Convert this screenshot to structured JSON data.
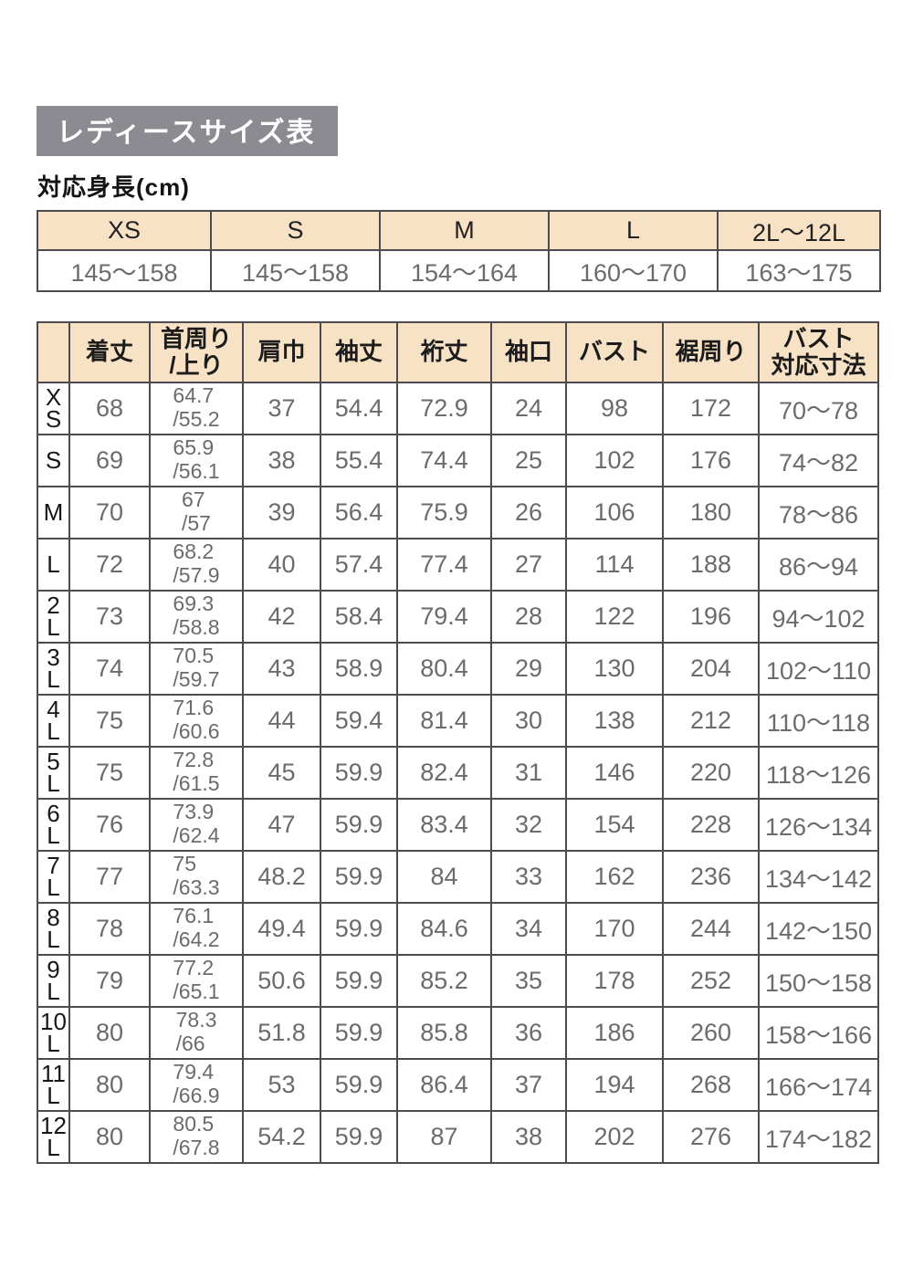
{
  "page": {
    "title": "レディースサイズ表",
    "subtitle": "対応身長(cm)"
  },
  "colors": {
    "title_background": "#8b8b91",
    "title_text": "#ffffff",
    "table_header_background": "#f8e2c6",
    "table_border": "#4b4b50",
    "data_text": "#6b6b6b"
  },
  "height_table": {
    "columns": [
      "XS",
      "S",
      "M",
      "L",
      "2L～12L"
    ],
    "values": [
      "145～158",
      "145～158",
      "154～164",
      "160～170",
      "163～175"
    ]
  },
  "size_table": {
    "columns": [
      "",
      "着丈",
      "首周り\n/上り",
      "肩巾",
      "袖丈",
      "裄丈",
      "袖口",
      "バスト",
      "裾周り",
      "バスト\n対応寸法"
    ],
    "rows": [
      {
        "size": "X\nS",
        "values": [
          "68",
          "64.7\n/55.2",
          "37",
          "54.4",
          "72.9",
          "24",
          "98",
          "172",
          "70～78"
        ]
      },
      {
        "size": "S",
        "values": [
          "69",
          "65.9\n/56.1",
          "38",
          "55.4",
          "74.4",
          "25",
          "102",
          "176",
          "74～82"
        ]
      },
      {
        "size": "M",
        "values": [
          "70",
          "67\n/57",
          "39",
          "56.4",
          "75.9",
          "26",
          "106",
          "180",
          "78～86"
        ]
      },
      {
        "size": "L",
        "values": [
          "72",
          "68.2\n/57.9",
          "40",
          "57.4",
          "77.4",
          "27",
          "114",
          "188",
          "86～94"
        ]
      },
      {
        "size": "2\nL",
        "values": [
          "73",
          "69.3\n/58.8",
          "42",
          "58.4",
          "79.4",
          "28",
          "122",
          "196",
          "94～102"
        ]
      },
      {
        "size": "3\nL",
        "values": [
          "74",
          "70.5\n/59.7",
          "43",
          "58.9",
          "80.4",
          "29",
          "130",
          "204",
          "102～110"
        ]
      },
      {
        "size": "4\nL",
        "values": [
          "75",
          "71.6\n/60.6",
          "44",
          "59.4",
          "81.4",
          "30",
          "138",
          "212",
          "110～118"
        ]
      },
      {
        "size": "5\nL",
        "values": [
          "75",
          "72.8\n/61.5",
          "45",
          "59.9",
          "82.4",
          "31",
          "146",
          "220",
          "118～126"
        ]
      },
      {
        "size": "6\nL",
        "values": [
          "76",
          "73.9\n/62.4",
          "47",
          "59.9",
          "83.4",
          "32",
          "154",
          "228",
          "126～134"
        ]
      },
      {
        "size": "7\nL",
        "values": [
          "77",
          "75\n/63.3",
          "48.2",
          "59.9",
          "84",
          "33",
          "162",
          "236",
          "134～142"
        ]
      },
      {
        "size": "8\nL",
        "values": [
          "78",
          "76.1\n/64.2",
          "49.4",
          "59.9",
          "84.6",
          "34",
          "170",
          "244",
          "142～150"
        ]
      },
      {
        "size": "9\nL",
        "values": [
          "79",
          "77.2\n/65.1",
          "50.6",
          "59.9",
          "85.2",
          "35",
          "178",
          "252",
          "150～158"
        ]
      },
      {
        "size": "10\nL",
        "values": [
          "80",
          "78.3\n/66",
          "51.8",
          "59.9",
          "85.8",
          "36",
          "186",
          "260",
          "158～166"
        ]
      },
      {
        "size": "11\nL",
        "values": [
          "80",
          "79.4\n/66.9",
          "53",
          "59.9",
          "86.4",
          "37",
          "194",
          "268",
          "166～174"
        ]
      },
      {
        "size": "12\nL",
        "values": [
          "80",
          "80.5\n/67.8",
          "54.2",
          "59.9",
          "87",
          "38",
          "202",
          "276",
          "174～182"
        ]
      }
    ]
  }
}
